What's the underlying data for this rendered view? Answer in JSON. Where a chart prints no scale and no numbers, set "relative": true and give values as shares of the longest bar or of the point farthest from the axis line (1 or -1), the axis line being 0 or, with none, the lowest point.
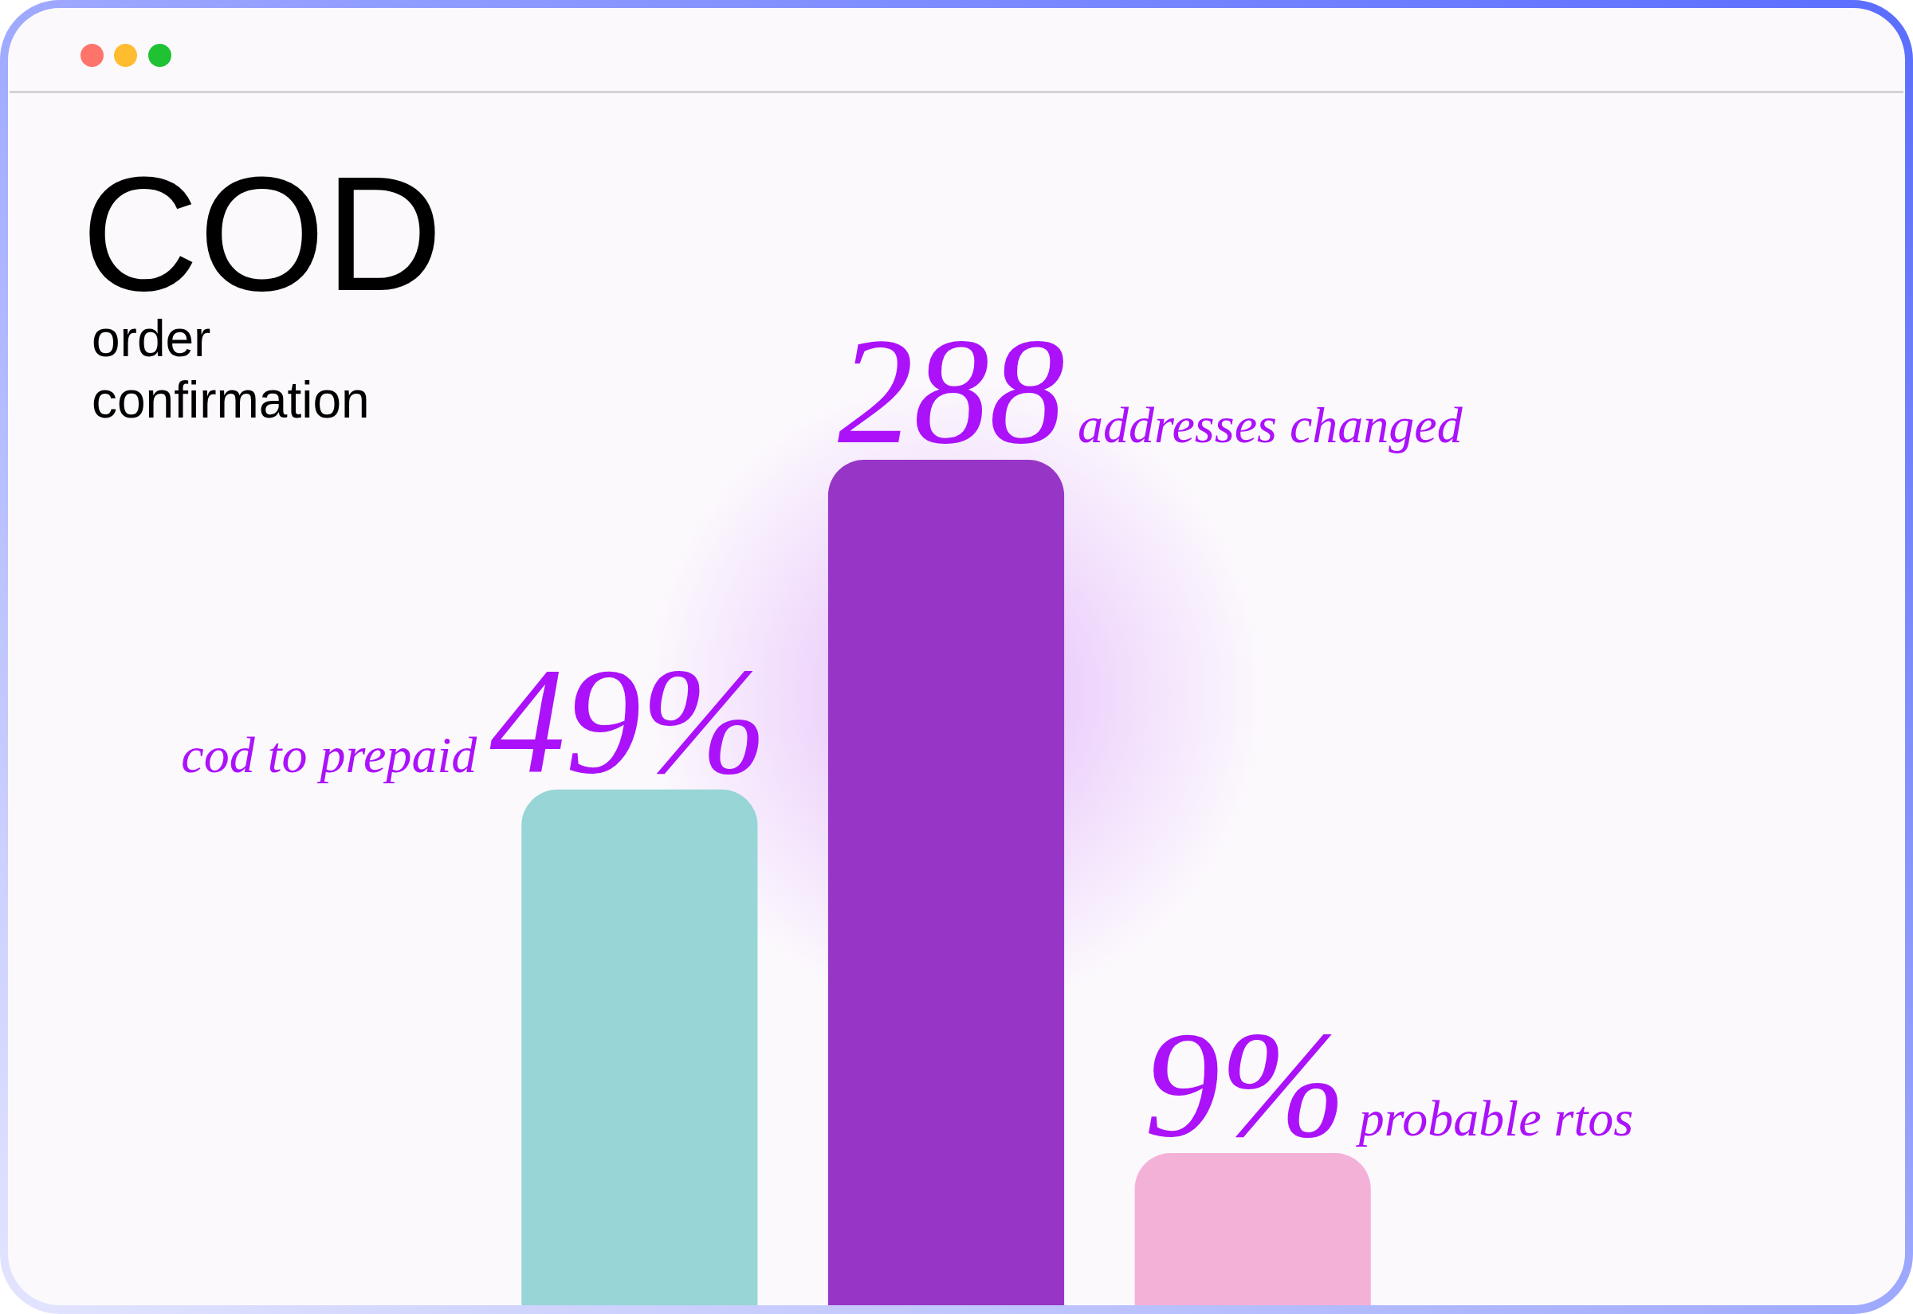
{
  "chart_data": {
    "type": "bar",
    "title": "COD",
    "subtitle": "order confirmation",
    "categories": [
      null,
      null,
      null
    ],
    "relative": true,
    "values": [
      0.61,
      1,
      0.18
    ],
    "colors": [
      "#97d5d6",
      "#9736c6",
      "#f4b1d8"
    ],
    "annotations": [
      "cod to prepaid",
      {
        "text": "49%",
        "y": 0.61
      },
      {
        "text": "288",
        "y": 1
      },
      "addresses changed",
      {
        "text": "9%",
        "y": 0.18
      },
      "probable rtos"
    ]
  }
}
